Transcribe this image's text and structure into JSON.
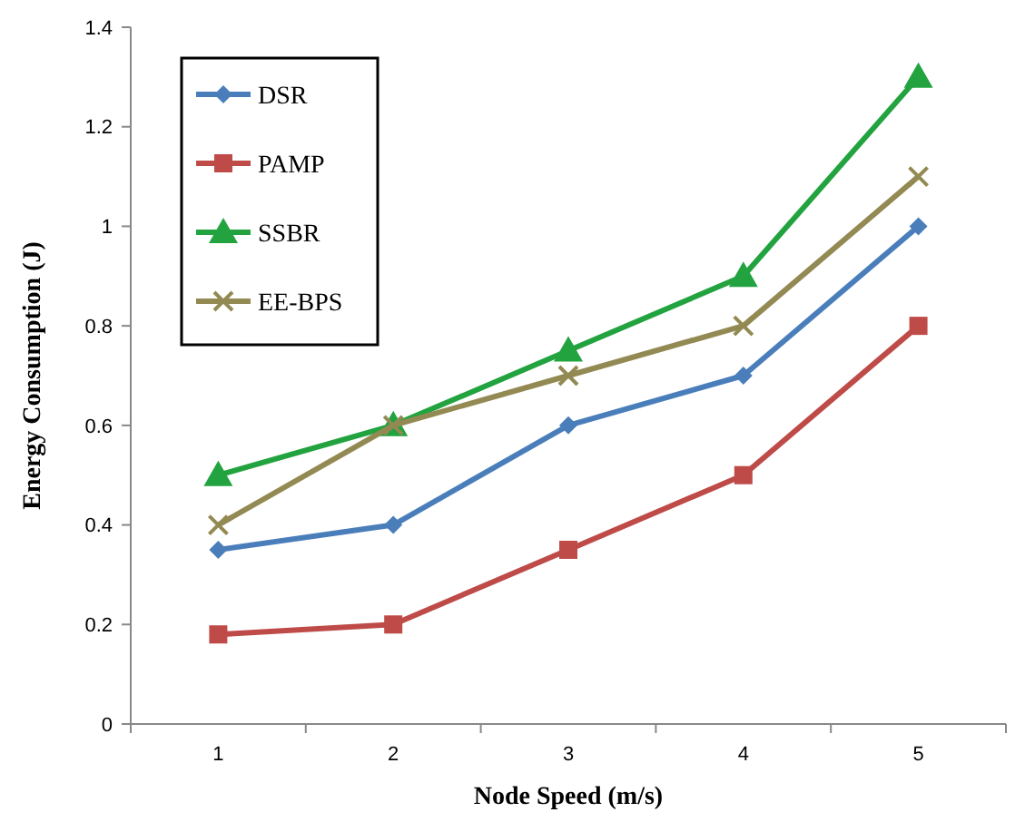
{
  "chart_data": {
    "type": "line",
    "xlabel": "Node Speed (m/s)",
    "ylabel": "Energy Consumption (J)",
    "categories": [
      "1",
      "2",
      "3",
      "4",
      "5"
    ],
    "ylim": [
      0,
      1.4
    ],
    "yticks": [
      0,
      0.2,
      0.4,
      0.6,
      0.8,
      1,
      1.2,
      1.4
    ],
    "grid": false,
    "legend": "top left",
    "line_style": "solid",
    "series": [
      {
        "name": "DSR",
        "color": "#4a7ebb",
        "marker": "diamond",
        "values": [
          0.35,
          0.4,
          0.6,
          0.7,
          1.0
        ]
      },
      {
        "name": "PAMP",
        "color": "#be4b48",
        "marker": "square",
        "values": [
          0.18,
          0.2,
          0.35,
          0.5,
          0.8
        ]
      },
      {
        "name": "SSBR",
        "color": "#22a33f",
        "marker": "triangle",
        "values": [
          0.5,
          0.6,
          0.75,
          0.9,
          1.3
        ]
      },
      {
        "name": "EE-BPS",
        "color": "#938953",
        "marker": "cross",
        "values": [
          0.4,
          0.6,
          0.7,
          0.8,
          1.1
        ]
      }
    ]
  }
}
